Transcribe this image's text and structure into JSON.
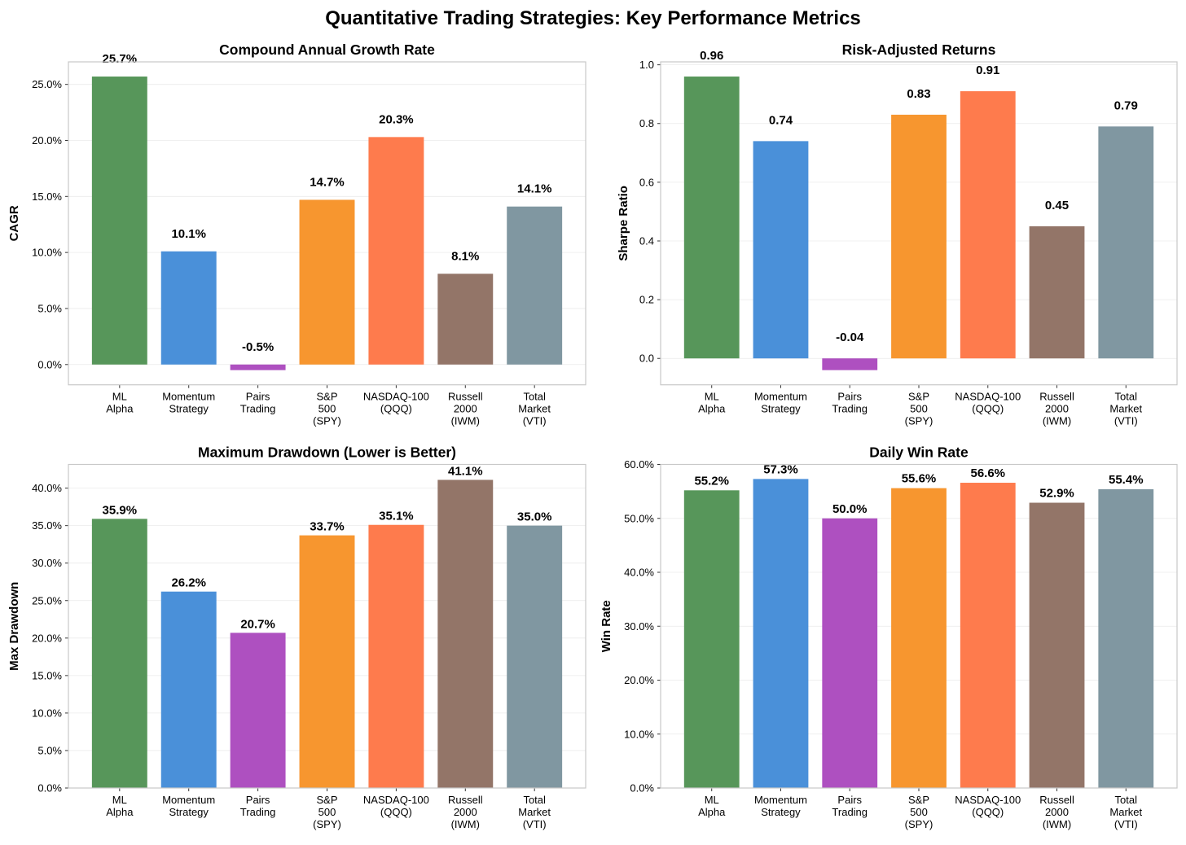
{
  "title": "Quantitative Trading Strategies: Key Performance Metrics",
  "chart_data": [
    {
      "type": "bar",
      "title": "Compound Annual Growth Rate",
      "xlabel": "",
      "ylabel": "CAGR",
      "categories": [
        [
          "ML",
          "Alpha"
        ],
        [
          "Momentum",
          "Strategy"
        ],
        [
          "Pairs",
          "Trading"
        ],
        [
          "S&P",
          "500",
          "(SPY)"
        ],
        [
          "NASDAQ-100",
          "(QQQ)"
        ],
        [
          "Russell",
          "2000",
          "(IWM)"
        ],
        [
          "Total",
          "Market",
          "(VTI)"
        ]
      ],
      "values": [
        25.7,
        10.1,
        -0.5,
        14.7,
        20.3,
        8.1,
        14.1
      ],
      "value_labels": [
        "25.7%",
        "10.1%",
        "-0.5%",
        "14.7%",
        "20.3%",
        "8.1%",
        "14.1%"
      ],
      "ylim": [
        -1.81,
        27.01
      ],
      "yticks": [
        0,
        5,
        10,
        15,
        20,
        25
      ],
      "ytick_labels": [
        "0.0%",
        "5.0%",
        "10.0%",
        "15.0%",
        "20.0%",
        "25.0%"
      ],
      "grid": true
    },
    {
      "type": "bar",
      "title": "Risk-Adjusted Returns",
      "xlabel": "",
      "ylabel": "Sharpe Ratio",
      "categories": [
        [
          "ML",
          "Alpha"
        ],
        [
          "Momentum",
          "Strategy"
        ],
        [
          "Pairs",
          "Trading"
        ],
        [
          "S&P",
          "500",
          "(SPY)"
        ],
        [
          "NASDAQ-100",
          "(QQQ)"
        ],
        [
          "Russell",
          "2000",
          "(IWM)"
        ],
        [
          "Total",
          "Market",
          "(VTI)"
        ]
      ],
      "values": [
        0.96,
        0.74,
        -0.04,
        0.83,
        0.91,
        0.45,
        0.79
      ],
      "value_labels": [
        "0.96",
        "0.74",
        "-0.04",
        "0.83",
        "0.91",
        "0.45",
        "0.79"
      ],
      "ylim": [
        -0.09,
        1.01
      ],
      "yticks": [
        0,
        0.2,
        0.4,
        0.6,
        0.8,
        1.0
      ],
      "ytick_labels": [
        "0.0",
        "0.2",
        "0.4",
        "0.6",
        "0.8",
        "1.0"
      ],
      "grid": true
    },
    {
      "type": "bar",
      "title": "Maximum Drawdown (Lower is Better)",
      "xlabel": "",
      "ylabel": "Max Drawdown",
      "categories": [
        [
          "ML",
          "Alpha"
        ],
        [
          "Momentum",
          "Strategy"
        ],
        [
          "Pairs",
          "Trading"
        ],
        [
          "S&P",
          "500",
          "(SPY)"
        ],
        [
          "NASDAQ-100",
          "(QQQ)"
        ],
        [
          "Russell",
          "2000",
          "(IWM)"
        ],
        [
          "Total",
          "Market",
          "(VTI)"
        ]
      ],
      "values": [
        35.9,
        26.2,
        20.7,
        33.7,
        35.1,
        41.1,
        35.0
      ],
      "value_labels": [
        "35.9%",
        "26.2%",
        "20.7%",
        "33.7%",
        "35.1%",
        "41.1%",
        "35.0%"
      ],
      "ylim": [
        0,
        43.16
      ],
      "yticks": [
        0,
        5,
        10,
        15,
        20,
        25,
        30,
        35,
        40
      ],
      "ytick_labels": [
        "0.0%",
        "5.0%",
        "10.0%",
        "15.0%",
        "20.0%",
        "25.0%",
        "30.0%",
        "35.0%",
        "40.0%"
      ],
      "grid": true
    },
    {
      "type": "bar",
      "title": "Daily Win Rate",
      "xlabel": "",
      "ylabel": "Win Rate",
      "categories": [
        [
          "ML",
          "Alpha"
        ],
        [
          "Momentum",
          "Strategy"
        ],
        [
          "Pairs",
          "Trading"
        ],
        [
          "S&P",
          "500",
          "(SPY)"
        ],
        [
          "NASDAQ-100",
          "(QQQ)"
        ],
        [
          "Russell",
          "2000",
          "(IWM)"
        ],
        [
          "Total",
          "Market",
          "(VTI)"
        ]
      ],
      "values": [
        55.2,
        57.3,
        50.0,
        55.6,
        56.6,
        52.9,
        55.4
      ],
      "value_labels": [
        "55.2%",
        "57.3%",
        "50.0%",
        "55.6%",
        "56.6%",
        "52.9%",
        "55.4%"
      ],
      "ylim": [
        0,
        60
      ],
      "yticks": [
        0,
        10,
        20,
        30,
        40,
        50,
        60
      ],
      "ytick_labels": [
        "0.0%",
        "10.0%",
        "20.0%",
        "30.0%",
        "40.0%",
        "50.0%",
        "60.0%"
      ],
      "grid": true
    }
  ],
  "colors": [
    "#57965a",
    "#4a90d9",
    "#ae50c0",
    "#f7962f",
    "#fe7b4d",
    "#937568",
    "#8097a1"
  ]
}
